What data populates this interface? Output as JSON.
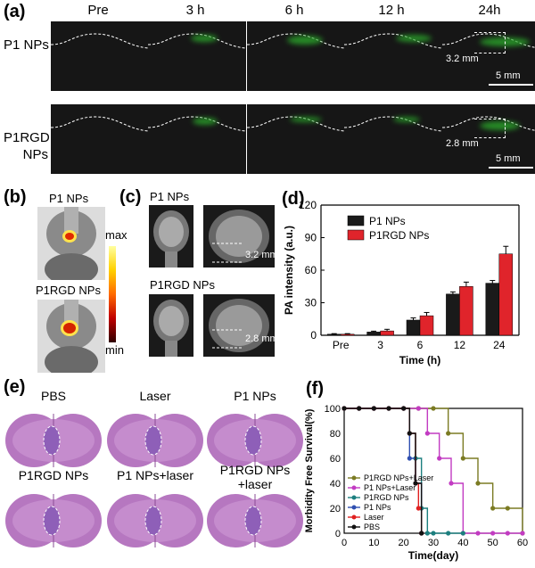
{
  "panel_a": {
    "label": "(a)",
    "columns": [
      "Pre",
      "3 h",
      "6 h",
      "12 h",
      "24h"
    ],
    "rows": [
      {
        "label": "P1 NPs",
        "depth": "3.2 mm",
        "scale": "5 mm"
      },
      {
        "label": "P1RGD NPs",
        "depth": "2.8 mm",
        "scale": "5 mm"
      }
    ]
  },
  "panel_b": {
    "label": "(b)",
    "top_label": "P1 NPs",
    "bottom_label": "P1RGD NPs",
    "colorbar_max": "max",
    "colorbar_min": "min"
  },
  "panel_c": {
    "label": "(c)",
    "top_label": "P1 NPs",
    "bottom_label": "P1RGD  NPs",
    "top_depth": "3.2 mm",
    "bottom_depth": "2.8 mm"
  },
  "panel_e": {
    "label": "(e)",
    "slices": [
      "PBS",
      "Laser",
      "P1 NPs",
      "P1RGD NPs",
      "P1 NPs+laser",
      "P1RGD NPs +laser"
    ]
  },
  "colors": {
    "p1": "#1a1a1a",
    "p1rgd": "#e0242b",
    "olive": "#7b7b23",
    "magenta": "#c23bc2",
    "teal": "#1c7f7f",
    "blue": "#2f4fb0",
    "red": "#e02020",
    "black": "#111111"
  },
  "chart_data": [
    {
      "panel": "(d)",
      "type": "bar",
      "categories": [
        "Pre",
        "3",
        "6",
        "12",
        "24"
      ],
      "series": [
        {
          "name": "P1 NPs",
          "values": [
            1,
            3,
            14,
            38,
            48
          ],
          "errors": [
            0.5,
            0.8,
            2,
            2,
            2.5
          ]
        },
        {
          "name": "P1RGD NPs",
          "values": [
            1,
            4,
            18,
            45,
            75
          ],
          "errors": [
            0.5,
            1.5,
            3,
            4,
            7
          ]
        }
      ],
      "xlabel": "Time (h)",
      "ylabel": "PA intensity (a.u.)",
      "ylim": [
        0,
        120
      ],
      "yticks": [
        "0",
        "30",
        "60",
        "90",
        "120"
      ],
      "legend": "top-left"
    },
    {
      "panel": "(f)",
      "type": "line",
      "xlabel": "Time(day)",
      "ylabel": "Morbidity Free Survival(%)",
      "xlim": [
        0,
        60
      ],
      "ylim": [
        0,
        100
      ],
      "xticks": [
        "0",
        "10",
        "20",
        "30",
        "40",
        "50",
        "60"
      ],
      "yticks": [
        "0",
        "20",
        "40",
        "60",
        "80",
        "100"
      ],
      "legend": "bottom-left",
      "series": [
        {
          "name": "P1RGD NPs+Laser",
          "x": [
            0,
            5,
            10,
            15,
            20,
            25,
            30,
            35,
            40,
            45,
            50,
            55,
            60
          ],
          "y": [
            100,
            100,
            100,
            100,
            100,
            100,
            100,
            80,
            60,
            40,
            20,
            20,
            0
          ]
        },
        {
          "name": "P1 NPs+Laser",
          "x": [
            0,
            5,
            10,
            15,
            20,
            25,
            28,
            32,
            36,
            40,
            45,
            50,
            55,
            60
          ],
          "y": [
            100,
            100,
            100,
            100,
            100,
            100,
            80,
            60,
            40,
            0,
            0,
            0,
            0,
            0
          ]
        },
        {
          "name": "P1RGD NPs",
          "x": [
            0,
            5,
            10,
            15,
            20,
            22,
            24,
            26,
            28,
            30,
            35,
            40
          ],
          "y": [
            100,
            100,
            100,
            100,
            100,
            80,
            60,
            20,
            0,
            0,
            0,
            0
          ]
        },
        {
          "name": "P1 NPs",
          "x": [
            0,
            5,
            10,
            15,
            20,
            22,
            24,
            26
          ],
          "y": [
            100,
            100,
            100,
            100,
            100,
            60,
            40,
            0
          ]
        },
        {
          "name": "Laser",
          "x": [
            0,
            5,
            10,
            15,
            20,
            22,
            24,
            25,
            26
          ],
          "y": [
            100,
            100,
            100,
            100,
            100,
            80,
            40,
            20,
            0
          ]
        },
        {
          "name": "PBS",
          "x": [
            0,
            5,
            10,
            15,
            20,
            22,
            24,
            26
          ],
          "y": [
            100,
            100,
            100,
            100,
            100,
            80,
            40,
            0
          ]
        }
      ]
    }
  ]
}
